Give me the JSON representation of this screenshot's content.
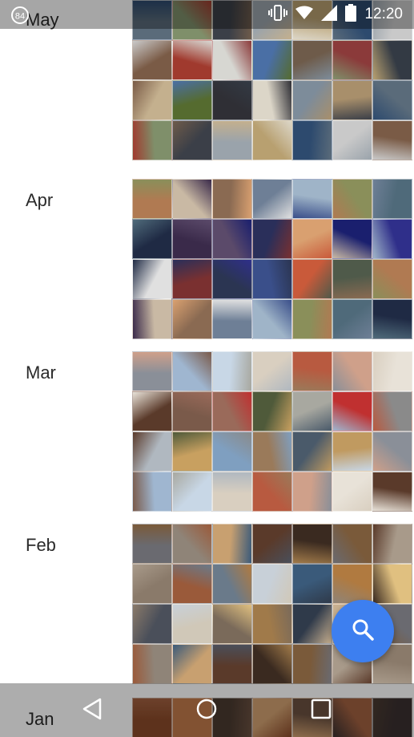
{
  "status_bar": {
    "notification_badge": "84",
    "time": "12:20",
    "icons": [
      "vibrate-icon",
      "wifi-icon",
      "cell-signal-icon",
      "battery-icon"
    ]
  },
  "months": [
    {
      "label": "May",
      "rows": 4,
      "palette": [
        "#5a6b7a",
        "#7f8f6a",
        "#3b3f48",
        "#9aa3ab",
        "#b8a070",
        "#2d4a6e",
        "#c9c9c9",
        "#7a5b46",
        "#a03a2e",
        "#d7d7d2",
        "#4a6fa5",
        "#6e5b4a",
        "#8b3a3a",
        "#333a44",
        "#c4b08e",
        "#556b2f",
        "#2f2f35",
        "#dcd6c8",
        "#7d8c9a",
        "#a88f6b"
      ]
    },
    {
      "label": "Apr",
      "rows": 4,
      "palette": [
        "#b07a52",
        "#c9b9a4",
        "#8a6a52",
        "#6e7f96",
        "#9fb4c8",
        "#8a8f5a",
        "#4f6a7a",
        "#1f2a44",
        "#3a2a4a",
        "#5b4a6a",
        "#2a2f5a",
        "#d9a070",
        "#1a1f6e",
        "#2f2f8a",
        "#e0e0e0",
        "#7a3030",
        "#2b3552",
        "#3a4f8a",
        "#c95a3a",
        "#4f5a4a"
      ]
    },
    {
      "label": "Mar",
      "rows": 4,
      "palette": [
        "#8a8f98",
        "#9fb6d0",
        "#c8d7e6",
        "#d9cfc0",
        "#b85a40",
        "#cfa08a",
        "#e8e2d8",
        "#5a3a2a",
        "#7a5a4a",
        "#9a6a5a",
        "#4f5a3a",
        "#a8a8a0",
        "#c03030",
        "#8a8a8a",
        "#b0b8c0",
        "#c8a060",
        "#7f9fc0",
        "#9a7a5a",
        "#4a5a6a",
        "#c09a60"
      ]
    },
    {
      "label": "Feb",
      "rows": 4,
      "palette": [
        "#6a6a70",
        "#8f8478",
        "#c8a070",
        "#5a3a2a",
        "#3a2a20",
        "#7a5a3a",
        "#a89a8a",
        "#8a7a6a",
        "#9a5a3a",
        "#6a7a8a",
        "#c8d0d8",
        "#3a5a7a",
        "#b07a40",
        "#e0c080",
        "#4a4f5a",
        "#d0c8b8",
        "#7a6a5a",
        "#a07a4a",
        "#2f3a4a",
        "#c8b090"
      ]
    },
    {
      "label": "Jan",
      "rows": 1,
      "palette": [
        "#8a4a2a",
        "#c07a4a",
        "#4a3a30",
        "#d0a070",
        "#6a5040",
        "#a06040",
        "#3a3030"
      ]
    }
  ],
  "fab": {
    "icon": "search-icon"
  },
  "nav_bar": {
    "buttons": [
      "back-icon",
      "home-icon",
      "recents-icon"
    ]
  },
  "colors": {
    "fab": "#3d7ff0",
    "label": "#2a2a2a"
  }
}
